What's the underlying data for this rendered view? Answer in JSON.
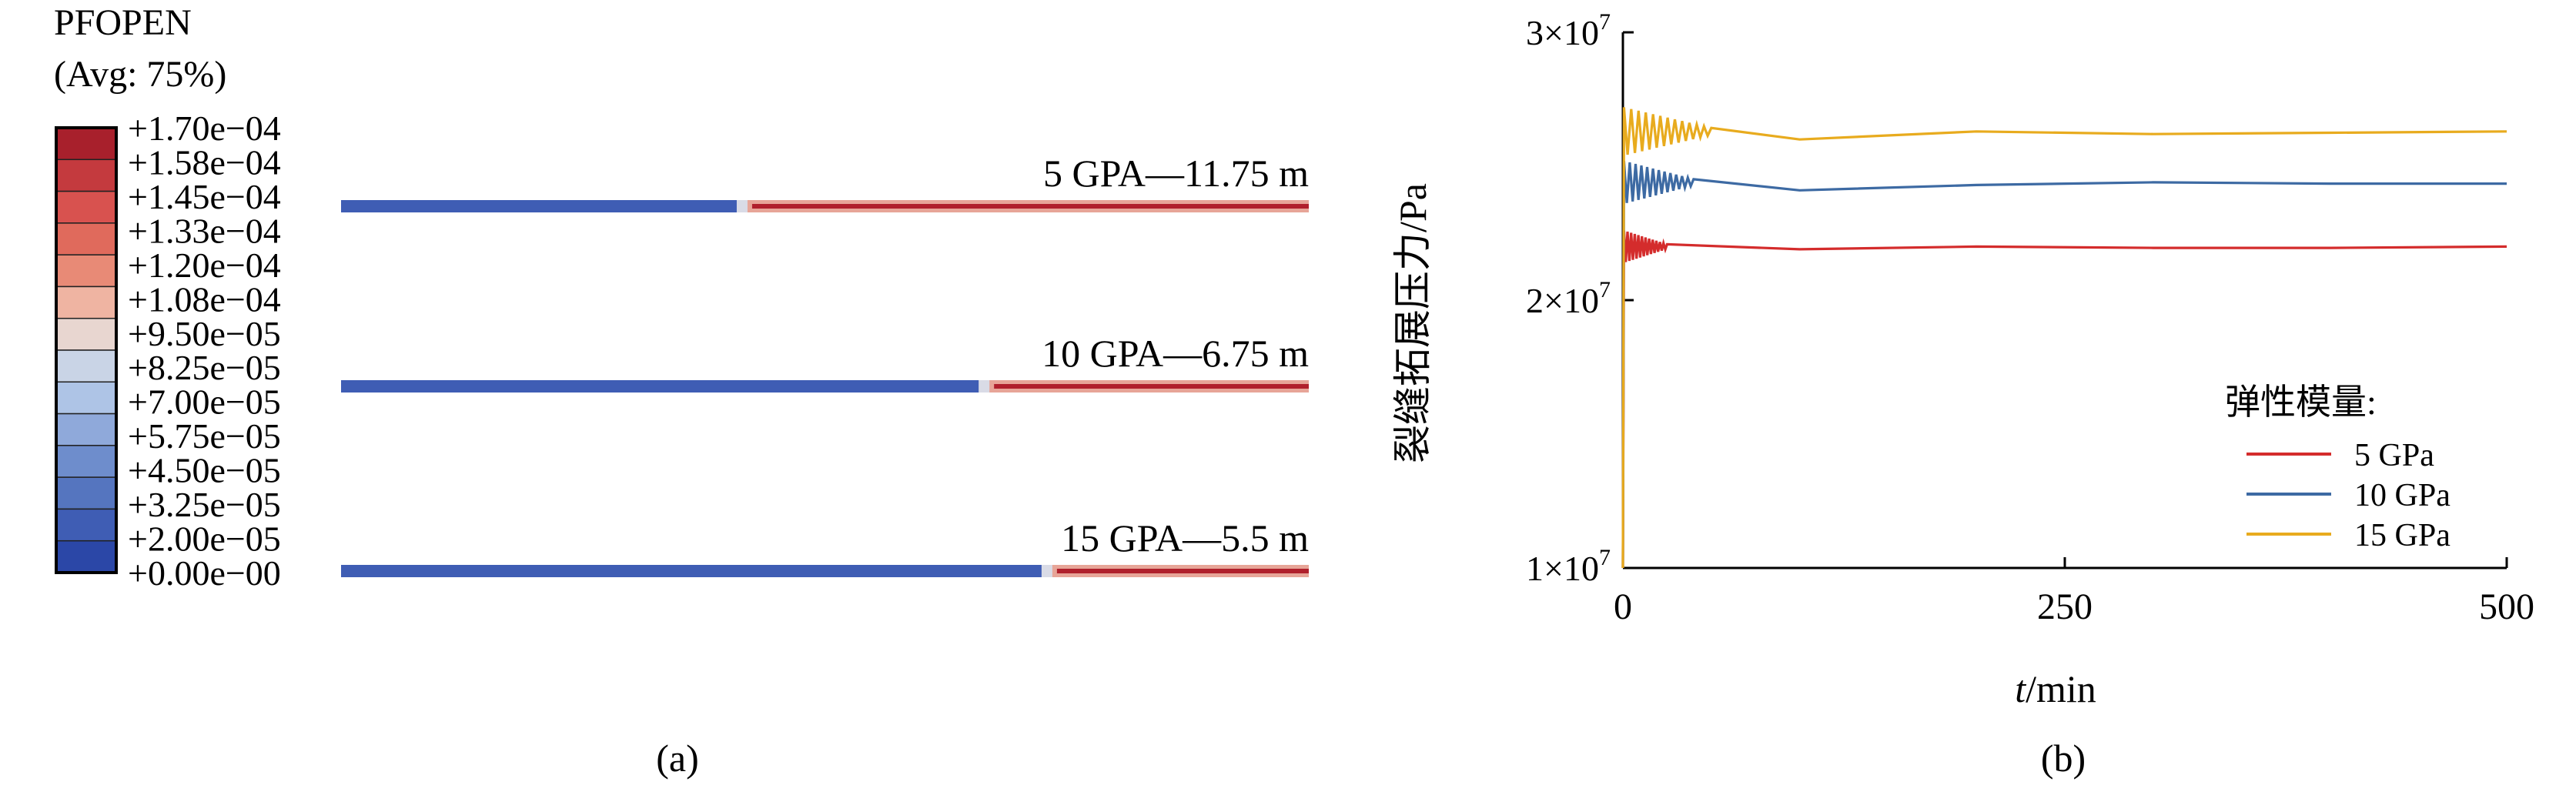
{
  "panel_a": {
    "legend_title_1": "PFOPEN",
    "legend_title_2": "(Avg: 75%)",
    "legend_colors": [
      "#a8202c",
      "#c43a3e",
      "#d8524f",
      "#e06a5c",
      "#e88a76",
      "#efb4a2",
      "#e8d6d0",
      "#c9d4e6",
      "#aec4e6",
      "#8fa9da",
      "#6e8dcc",
      "#5575bf",
      "#3f5db4",
      "#2b47a7"
    ],
    "legend_labels": [
      "+1.70e−04",
      "+1.58e−04",
      "+1.45e−04",
      "+1.33e−04",
      "+1.20e−04",
      "+1.08e−04",
      "+9.50e−05",
      "+8.25e−05",
      "+7.00e−05",
      "+5.75e−05",
      "+4.50e−05",
      "+3.25e−05",
      "+2.00e−05",
      "+0.00e−00"
    ],
    "fractures": [
      {
        "label": "5 GPA—11.75 m",
        "open_fraction": 0.42
      },
      {
        "label": "10 GPA—6.75 m",
        "open_fraction": 0.67
      },
      {
        "label": "15 GPA—5.5 m",
        "open_fraction": 0.735
      }
    ],
    "caption": "(a)"
  },
  "chart_data": {
    "type": "line",
    "xlabel_italic": "t",
    "xlabel_rest": "/min",
    "ylabel": "裂缝拓展压力/Pa",
    "xlim": [
      0,
      500
    ],
    "ylim": [
      10000000,
      30000000
    ],
    "x_ticks": [
      0,
      250,
      500
    ],
    "x_tick_labels": [
      "0",
      "250",
      "500"
    ],
    "y_ticks": [
      10000000,
      20000000,
      30000000
    ],
    "y_tick_labels": [
      {
        "base": "1×10",
        "exp": "7"
      },
      {
        "base": "2×10",
        "exp": "7"
      },
      {
        "base": "3×10",
        "exp": "7"
      }
    ],
    "legend_title": "弹性模量:",
    "legend_position": "right",
    "series": [
      {
        "name": "5 GPa",
        "color": "#d42c2c",
        "start": 10000000,
        "level": 22000000,
        "osc_amp": 600000,
        "osc_end": 25,
        "points": [
          [
            0,
            22000000
          ],
          [
            100,
            21900000
          ],
          [
            200,
            22000000
          ],
          [
            300,
            21950000
          ],
          [
            400,
            21950000
          ],
          [
            500,
            22000000
          ]
        ]
      },
      {
        "name": "10 GPa",
        "color": "#3d6aa3",
        "start": 10000000,
        "level": 24400000,
        "osc_amp": 800000,
        "osc_end": 40,
        "points": [
          [
            0,
            24200000
          ],
          [
            100,
            24100000
          ],
          [
            200,
            24300000
          ],
          [
            300,
            24400000
          ],
          [
            400,
            24350000
          ],
          [
            500,
            24350000
          ]
        ]
      },
      {
        "name": "15 GPa",
        "color": "#e8ab1e",
        "start": 10000000,
        "level": 26300000,
        "osc_amp": 900000,
        "osc_end": 50,
        "points": [
          [
            0,
            26000000
          ],
          [
            100,
            26000000
          ],
          [
            200,
            26300000
          ],
          [
            300,
            26200000
          ],
          [
            400,
            26250000
          ],
          [
            500,
            26300000
          ]
        ]
      }
    ],
    "caption": "(b)"
  }
}
